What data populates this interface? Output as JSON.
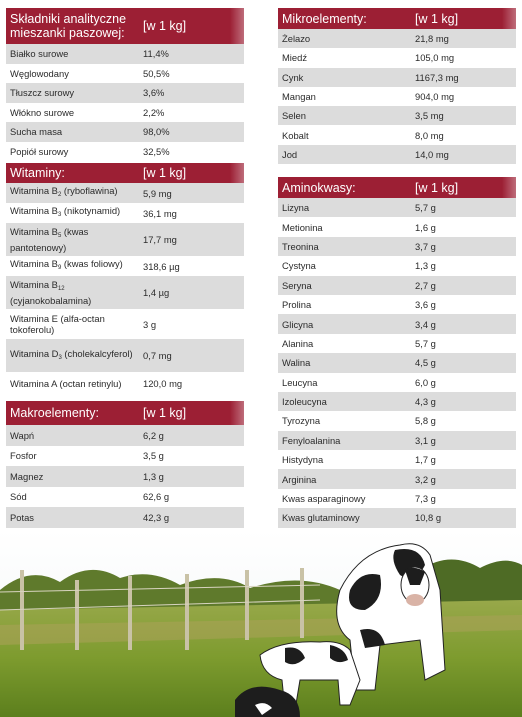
{
  "skladniki": {
    "title": "Składniki analityczne mieszanki paszowej:",
    "unit": "[w 1 kg]",
    "rows": [
      {
        "name": "Białko surowe",
        "value": "11,4%"
      },
      {
        "name": "Węglowodany",
        "value": "50,5%"
      },
      {
        "name": "Tłuszcz surowy",
        "value": "3,6%"
      },
      {
        "name": "Włókno surowe",
        "value": "2,2%"
      },
      {
        "name": "Sucha masa",
        "value": "98,0%"
      },
      {
        "name": "Popiół surowy",
        "value": "32,5%"
      }
    ]
  },
  "witaminy": {
    "title": "Witaminy:",
    "unit": "[w 1 kg]",
    "rows": [
      {
        "name": "Witamina B",
        "sub": "2",
        "rest": " (ryboflawina)",
        "value": "5,9 mg"
      },
      {
        "name": "Witamina B",
        "sub": "3",
        "rest": " (nikotynamid)",
        "value": "36,1 mg"
      },
      {
        "name": "Witamina B",
        "sub": "5",
        "rest": " (kwas pantotenowy)",
        "value": "17,7 mg"
      },
      {
        "name": "Witamina B",
        "sub": "9",
        "rest": " (kwas foliowy)",
        "value": "318,6 µg"
      },
      {
        "name": "Witamina B",
        "sub": "12",
        "rest": " (cyjanokobalamina)",
        "value": "1,4 µg"
      },
      {
        "name": "Witamina E",
        "sub": "",
        "rest": " (alfa-octan tokoferolu)",
        "value": "3 g"
      },
      {
        "name": "Witamina D",
        "sub": "3",
        "rest": " (cholekalcyferol)",
        "value": "0,7 mg"
      },
      {
        "name": "Witamina A (octan retinylu)",
        "sub": "",
        "rest": "",
        "value": "120,0 mg"
      }
    ]
  },
  "makro": {
    "title": "Makroelementy:",
    "unit": "[w 1 kg]",
    "rows": [
      {
        "name": "Wapń",
        "value": "6,2 g"
      },
      {
        "name": "Fosfor",
        "value": "3,5 g"
      },
      {
        "name": "Magnez",
        "value": "1,3 g"
      },
      {
        "name": "Sód",
        "value": "62,6 g"
      },
      {
        "name": "Potas",
        "value": "42,3 g"
      }
    ]
  },
  "mikro": {
    "title": "Mikroelementy:",
    "unit": "[w 1 kg]",
    "rows": [
      {
        "name": "Żelazo",
        "value": "21,8 mg"
      },
      {
        "name": "Miedź",
        "value": "105,0 mg"
      },
      {
        "name": "Cynk",
        "value": "1167,3 mg"
      },
      {
        "name": "Mangan",
        "value": "904,0 mg"
      },
      {
        "name": "Selen",
        "value": "3,5 mg"
      },
      {
        "name": "Kobalt",
        "value": "8,0 mg"
      },
      {
        "name": "Jod",
        "value": "14,0 mg"
      }
    ]
  },
  "amino": {
    "title": "Aminokwasy:",
    "unit": "[w 1 kg]",
    "rows": [
      {
        "name": "Lizyna",
        "value": "5,7 g"
      },
      {
        "name": "Metionina",
        "value": "1,6 g"
      },
      {
        "name": "Treonina",
        "value": "3,7 g"
      },
      {
        "name": "Cystyna",
        "value": "1,3 g"
      },
      {
        "name": "Seryna",
        "value": "2,7 g"
      },
      {
        "name": "Prolina",
        "value": "3,6 g"
      },
      {
        "name": "Glicyna",
        "value": "3,4 g"
      },
      {
        "name": "Alanina",
        "value": "5,7 g"
      },
      {
        "name": "Walina",
        "value": "4,5 g"
      },
      {
        "name": "Leucyna",
        "value": "6,0 g"
      },
      {
        "name": "Izoleucyna",
        "value": "4,3 g"
      },
      {
        "name": "Tyrozyna",
        "value": "5,8 g"
      },
      {
        "name": "Fenyloalanina",
        "value": "3,1 g"
      },
      {
        "name": "Histydyna",
        "value": "1,7 g"
      },
      {
        "name": "Arginina",
        "value": "3,2 g"
      },
      {
        "name": "Kwas asparaginowy",
        "value": "7,3 g"
      },
      {
        "name": "Kwas glutaminowy",
        "value": "10,8 g"
      }
    ]
  },
  "colors": {
    "header": "#9c1f34",
    "stripe": "#dcdcdc"
  }
}
